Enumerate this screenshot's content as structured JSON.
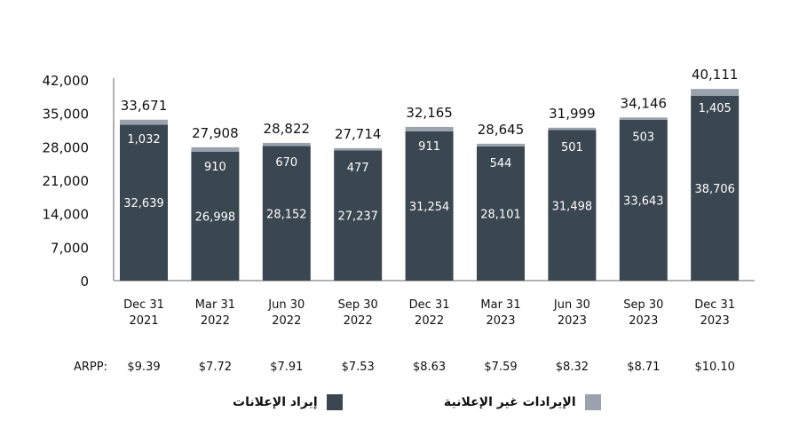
{
  "chart_data": {
    "type": "bar",
    "stacked": true,
    "categories": [
      [
        "Dec 31",
        "2021"
      ],
      [
        "Mar 31",
        "2022"
      ],
      [
        "Jun 30",
        "2022"
      ],
      [
        "Sep 30",
        "2022"
      ],
      [
        "Dec 31",
        "2022"
      ],
      [
        "Mar 31",
        "2023"
      ],
      [
        "Jun 30",
        "2023"
      ],
      [
        "Sep 30",
        "2023"
      ],
      [
        "Dec 31",
        "2023"
      ]
    ],
    "series": [
      {
        "name": "إيراد الإعلانات",
        "color": "#3a4650",
        "values": [
          32639,
          26998,
          28152,
          27237,
          31254,
          28101,
          31498,
          33643,
          38706
        ],
        "labels": [
          "32,639",
          "26,998",
          "28,152",
          "27,237",
          "31,254",
          "28,101",
          "31,498",
          "33,643",
          "38,706"
        ]
      },
      {
        "name": "الإيرادات غير الإعلانية",
        "color": "#9aa3ad",
        "values": [
          1032,
          910,
          670,
          477,
          911,
          544,
          501,
          503,
          1405
        ],
        "labels": [
          "1,032",
          "910",
          "670",
          "477",
          "911",
          "544",
          "501",
          "503",
          "1,405"
        ]
      }
    ],
    "totals": [
      "33,671",
      "27,908",
      "28,822",
      "27,714",
      "32,165",
      "28,645",
      "31,999",
      "34,146",
      "40,111"
    ],
    "yticks": [
      "0",
      "7,000",
      "14,000",
      "21,000",
      "28,000",
      "35,000",
      "42,000"
    ],
    "ylim": [
      0,
      42000
    ],
    "arpp_label": "ARPP:",
    "arpp": [
      "$9.39",
      "$7.72",
      "$7.91",
      "$7.53",
      "$8.63",
      "$7.59",
      "$8.32",
      "$8.71",
      "$10.10"
    ],
    "legend_placement": "bottom",
    "grid": false
  }
}
